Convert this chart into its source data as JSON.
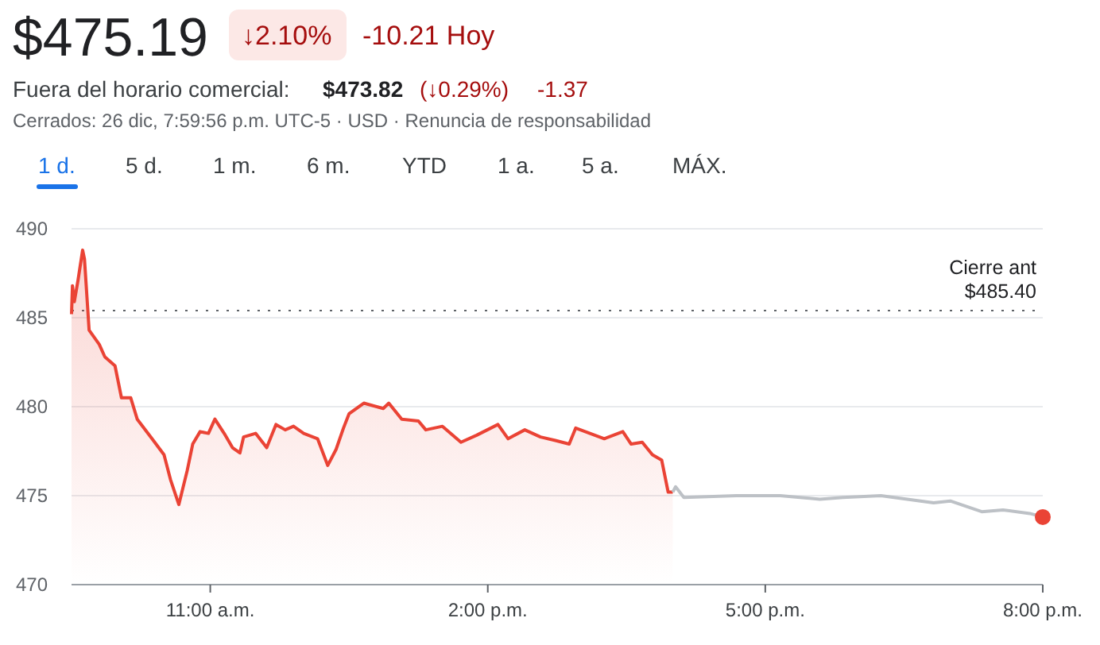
{
  "chart_data": {
    "type": "area",
    "title": "$475.19",
    "annotations": [
      "↓2.10%",
      "-10.21 Hoy",
      "Fuera del horario comercial:",
      "$473.82",
      "(↓0.29%)",
      "-1.37",
      "Cerrados: 26 dic, 7:59:56 p.m. UTC-5 · USD · Renuncia de responsabilidad",
      "1 d.",
      "5 d.",
      "1 m.",
      "6 m.",
      "YTD",
      "1 a.",
      "5 a.",
      "MÁX."
    ],
    "xlim": [
      9.5,
      20
    ],
    "xticks": [
      {
        "value": 11,
        "label": "11:00 a.m."
      },
      {
        "value": 14,
        "label": "2:00 p.m."
      },
      {
        "value": 17,
        "label": "5:00 p.m."
      },
      {
        "value": 20,
        "label": "8:00 p.m."
      }
    ],
    "ylim": [
      470,
      490
    ],
    "yticks": [
      470,
      475,
      480,
      485,
      490
    ],
    "grid": "y",
    "ref_lines": [
      {
        "axis": "y",
        "value": 485.4,
        "label": "Cierre ant\n$485.40",
        "color": "#5f6368",
        "line_style": "dotted"
      }
    ],
    "series": [
      {
        "color": "#ea4335",
        "x": [
          9.5,
          9.51,
          9.53,
          9.57,
          9.62,
          9.64,
          9.69,
          9.8,
          9.86,
          9.97,
          10.04,
          10.14,
          10.21,
          10.37,
          10.5,
          10.57,
          10.66,
          10.75,
          10.81,
          10.89,
          10.98,
          11.05,
          11.15,
          11.24,
          11.32,
          11.36,
          11.49,
          11.61,
          11.71,
          11.81,
          11.9,
          12.01,
          12.16,
          12.27,
          12.36,
          12.44,
          12.5,
          12.66,
          12.87,
          12.93,
          13.07,
          13.25,
          13.33,
          13.51,
          13.71,
          13.88,
          14.11,
          14.22,
          14.4,
          14.57,
          14.73,
          14.88,
          14.95,
          15.26,
          15.46,
          15.55,
          15.67,
          15.78,
          15.88,
          15.95,
          16
        ],
        "values": [
          485.2,
          486.8,
          485.9,
          487.1,
          488.8,
          488.3,
          484.3,
          483.5,
          482.8,
          482.3,
          480.5,
          480.5,
          479.3,
          478.2,
          477.3,
          475.9,
          474.5,
          476.4,
          477.9,
          478.6,
          478.5,
          479.3,
          478.5,
          477.7,
          477.4,
          478.3,
          478.5,
          477.7,
          479,
          478.7,
          478.9,
          478.5,
          478.2,
          476.7,
          477.6,
          478.8,
          479.6,
          480.2,
          479.9,
          480.2,
          479.3,
          479.2,
          478.7,
          478.9,
          478,
          478.4,
          479,
          478.2,
          478.7,
          478.3,
          478.1,
          477.9,
          478.8,
          478.2,
          478.6,
          477.9,
          478,
          477.3,
          477,
          475.2,
          475.2
        ]
      },
      {
        "type": "line",
        "color": "#bdc1c6",
        "x": [
          16,
          16.03,
          16.12,
          16.69,
          17.16,
          17.59,
          17.84,
          18.25,
          18.82,
          19,
          19.34,
          19.57,
          19.86,
          20
        ],
        "values": [
          475.2,
          475.5,
          474.9,
          475,
          475,
          474.8,
          474.9,
          475,
          474.6,
          474.7,
          474.1,
          474.2,
          474,
          473.8
        ]
      },
      {
        "type": "scatter",
        "color": "#ea4335",
        "marker": "circle",
        "x": [
          20
        ],
        "values": [
          473.8
        ]
      }
    ]
  }
}
